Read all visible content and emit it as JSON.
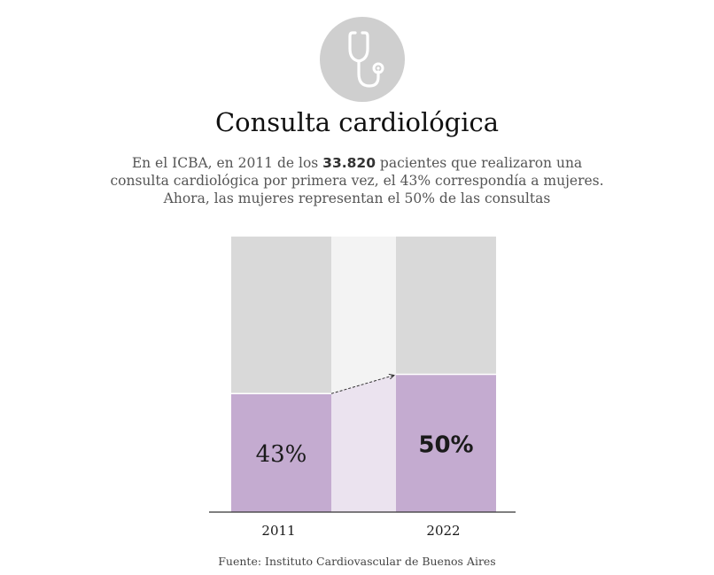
{
  "header": {
    "icon": "stethoscope-icon",
    "title": "Consulta cardiológica",
    "subtitle_before": "En el ICBA, en 2011 de los ",
    "subtitle_bold": "33.820",
    "subtitle_after": " pacientes que realizaron una consulta cardiológica por primera vez, el 43% correspondía a mujeres. Ahora, las mujeres representan el 50% de las consultas"
  },
  "chart_data": {
    "type": "bar",
    "stacked": true,
    "categories": [
      "2011",
      "2022"
    ],
    "series": [
      {
        "values": [
          43,
          50
        ],
        "labels": [
          "43%",
          "50%"
        ],
        "color": "#c4abd0"
      },
      {
        "values": [
          57,
          50
        ],
        "color": "#d9d9d9"
      }
    ],
    "ylim": [
      0,
      100
    ],
    "connector_colors": {
      "top": "#f3f3f3",
      "bottom": "#ebe3ef"
    },
    "grid": false,
    "legend": "none"
  },
  "source": "Fuente: Instituto Cardiovascular de Buenos Aires"
}
